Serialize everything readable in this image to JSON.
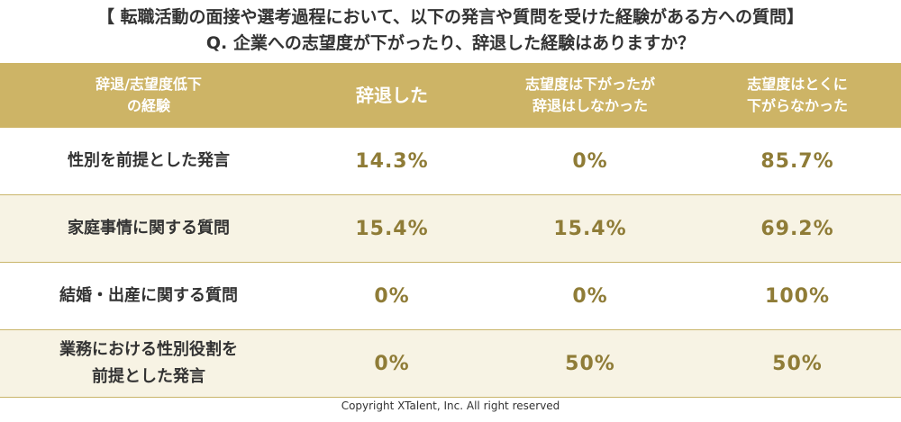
{
  "header": {
    "title": "【 転職活動の面接や選考過程において、以下の発言や質問を受けた経験がある方への質問】",
    "question": "Q. 企業への志望度が下がったり、辞退した経験はありますか？"
  },
  "table": {
    "columns": [
      "辞退/志望度低下\nの経験",
      "辞退した",
      "志望度は下がったが\n辞退はしなかった",
      "志望度はとくに\n下がらなかった"
    ],
    "rows": [
      [
        "性別を前提とした発言",
        "14.3%",
        "0%",
        "85.7%"
      ],
      [
        "家庭事情に関する質問",
        "15.4%",
        "15.4%",
        "69.2%"
      ],
      [
        "結婚・出産に関する質問",
        "0%",
        "0%",
        "100%"
      ],
      [
        "業務における性別役割を\n前提とした発言",
        "0%",
        "50%",
        "50%"
      ]
    ]
  },
  "footer": "Copyright XTalent, Inc. All right reserved"
}
